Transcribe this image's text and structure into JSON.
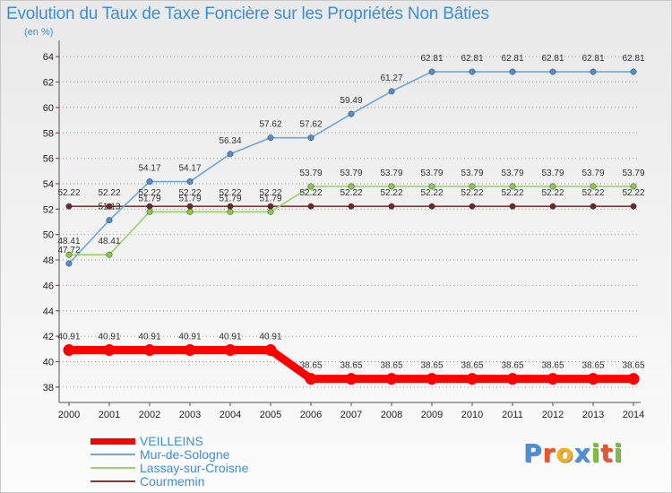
{
  "chart_data": {
    "type": "line",
    "title": "Evolution du Taux de Taxe Foncière sur les Propriétés Non Bâties",
    "unit_label": "(en %)",
    "xlabel": "",
    "ylabel": "(en %)",
    "categories": [
      "2000",
      "2001",
      "2002",
      "2003",
      "2004",
      "2005",
      "2006",
      "2007",
      "2008",
      "2009",
      "2010",
      "2011",
      "2012",
      "2013",
      "2014"
    ],
    "ylim": [
      37,
      65
    ],
    "yticks": [
      38,
      40,
      42,
      44,
      46,
      48,
      50,
      52,
      54,
      56,
      58,
      60,
      62,
      64
    ],
    "grid": "horizontal dotted",
    "legend_position": "bottom-left",
    "series": [
      {
        "name": "VEILLEINS",
        "color": "#ff0000",
        "values": [
          40.91,
          40.91,
          40.91,
          40.91,
          40.91,
          40.91,
          38.65,
          38.65,
          38.65,
          38.65,
          38.65,
          38.65,
          38.65,
          38.65,
          38.65
        ],
        "labels": [
          "40.91",
          "40.91",
          "40.91",
          "40.91",
          "40.91",
          "40.91",
          "38.65",
          "38.65",
          "38.65",
          "38.65",
          "38.65",
          "38.65",
          "38.65",
          "38.65",
          "38.65"
        ]
      },
      {
        "name": "Mur-de-Sologne",
        "color": "#6ea6d8",
        "values": [
          47.72,
          51.13,
          54.17,
          54.17,
          56.34,
          57.62,
          57.62,
          59.49,
          61.27,
          62.81,
          62.81,
          62.81,
          62.81,
          62.81,
          62.81
        ],
        "labels": [
          "47.72",
          "51.13",
          "54.17",
          "54.17",
          "56.34",
          "57.62",
          "57.62",
          "59.49",
          "61.27",
          "62.81",
          "62.81",
          "62.81",
          "62.81",
          "62.81",
          "62.81"
        ]
      },
      {
        "name": "Lassay-sur-Croisne",
        "color": "#99d466",
        "values": [
          48.41,
          48.41,
          51.79,
          51.79,
          51.79,
          51.79,
          53.79,
          53.79,
          53.79,
          53.79,
          53.79,
          53.79,
          53.79,
          53.79,
          53.79
        ],
        "labels": [
          "48.41",
          "48.41",
          "51.79",
          "51.79",
          "51.79",
          "51.79",
          "53.79",
          "53.79",
          "53.79",
          "53.79",
          "53.79",
          "53.79",
          "53.79",
          "53.79",
          "53.79"
        ]
      },
      {
        "name": "Courmemin",
        "color": "#7a3a3a",
        "values": [
          52.22,
          52.22,
          52.22,
          52.22,
          52.22,
          52.22,
          52.22,
          52.22,
          52.22,
          52.22,
          52.22,
          52.22,
          52.22,
          52.22,
          52.22
        ],
        "labels": [
          "52.22",
          "52.22",
          "52.22",
          "52.22",
          "52.22",
          "52.22",
          "52.22",
          "52.22",
          "52.22",
          "52.22",
          "52.22",
          "52.22",
          "52.22",
          "52.22",
          "52.22"
        ]
      }
    ]
  },
  "logo": {
    "text": "Proxiti",
    "letters": [
      "P",
      "r",
      "o",
      "x",
      "i",
      "t",
      "i"
    ],
    "colors": [
      "#4a8fd8",
      "#e8552e",
      "#f2b21b",
      "#4a8fd8",
      "#7bbf3a",
      "#e8552e",
      "#7bbf3a"
    ]
  }
}
